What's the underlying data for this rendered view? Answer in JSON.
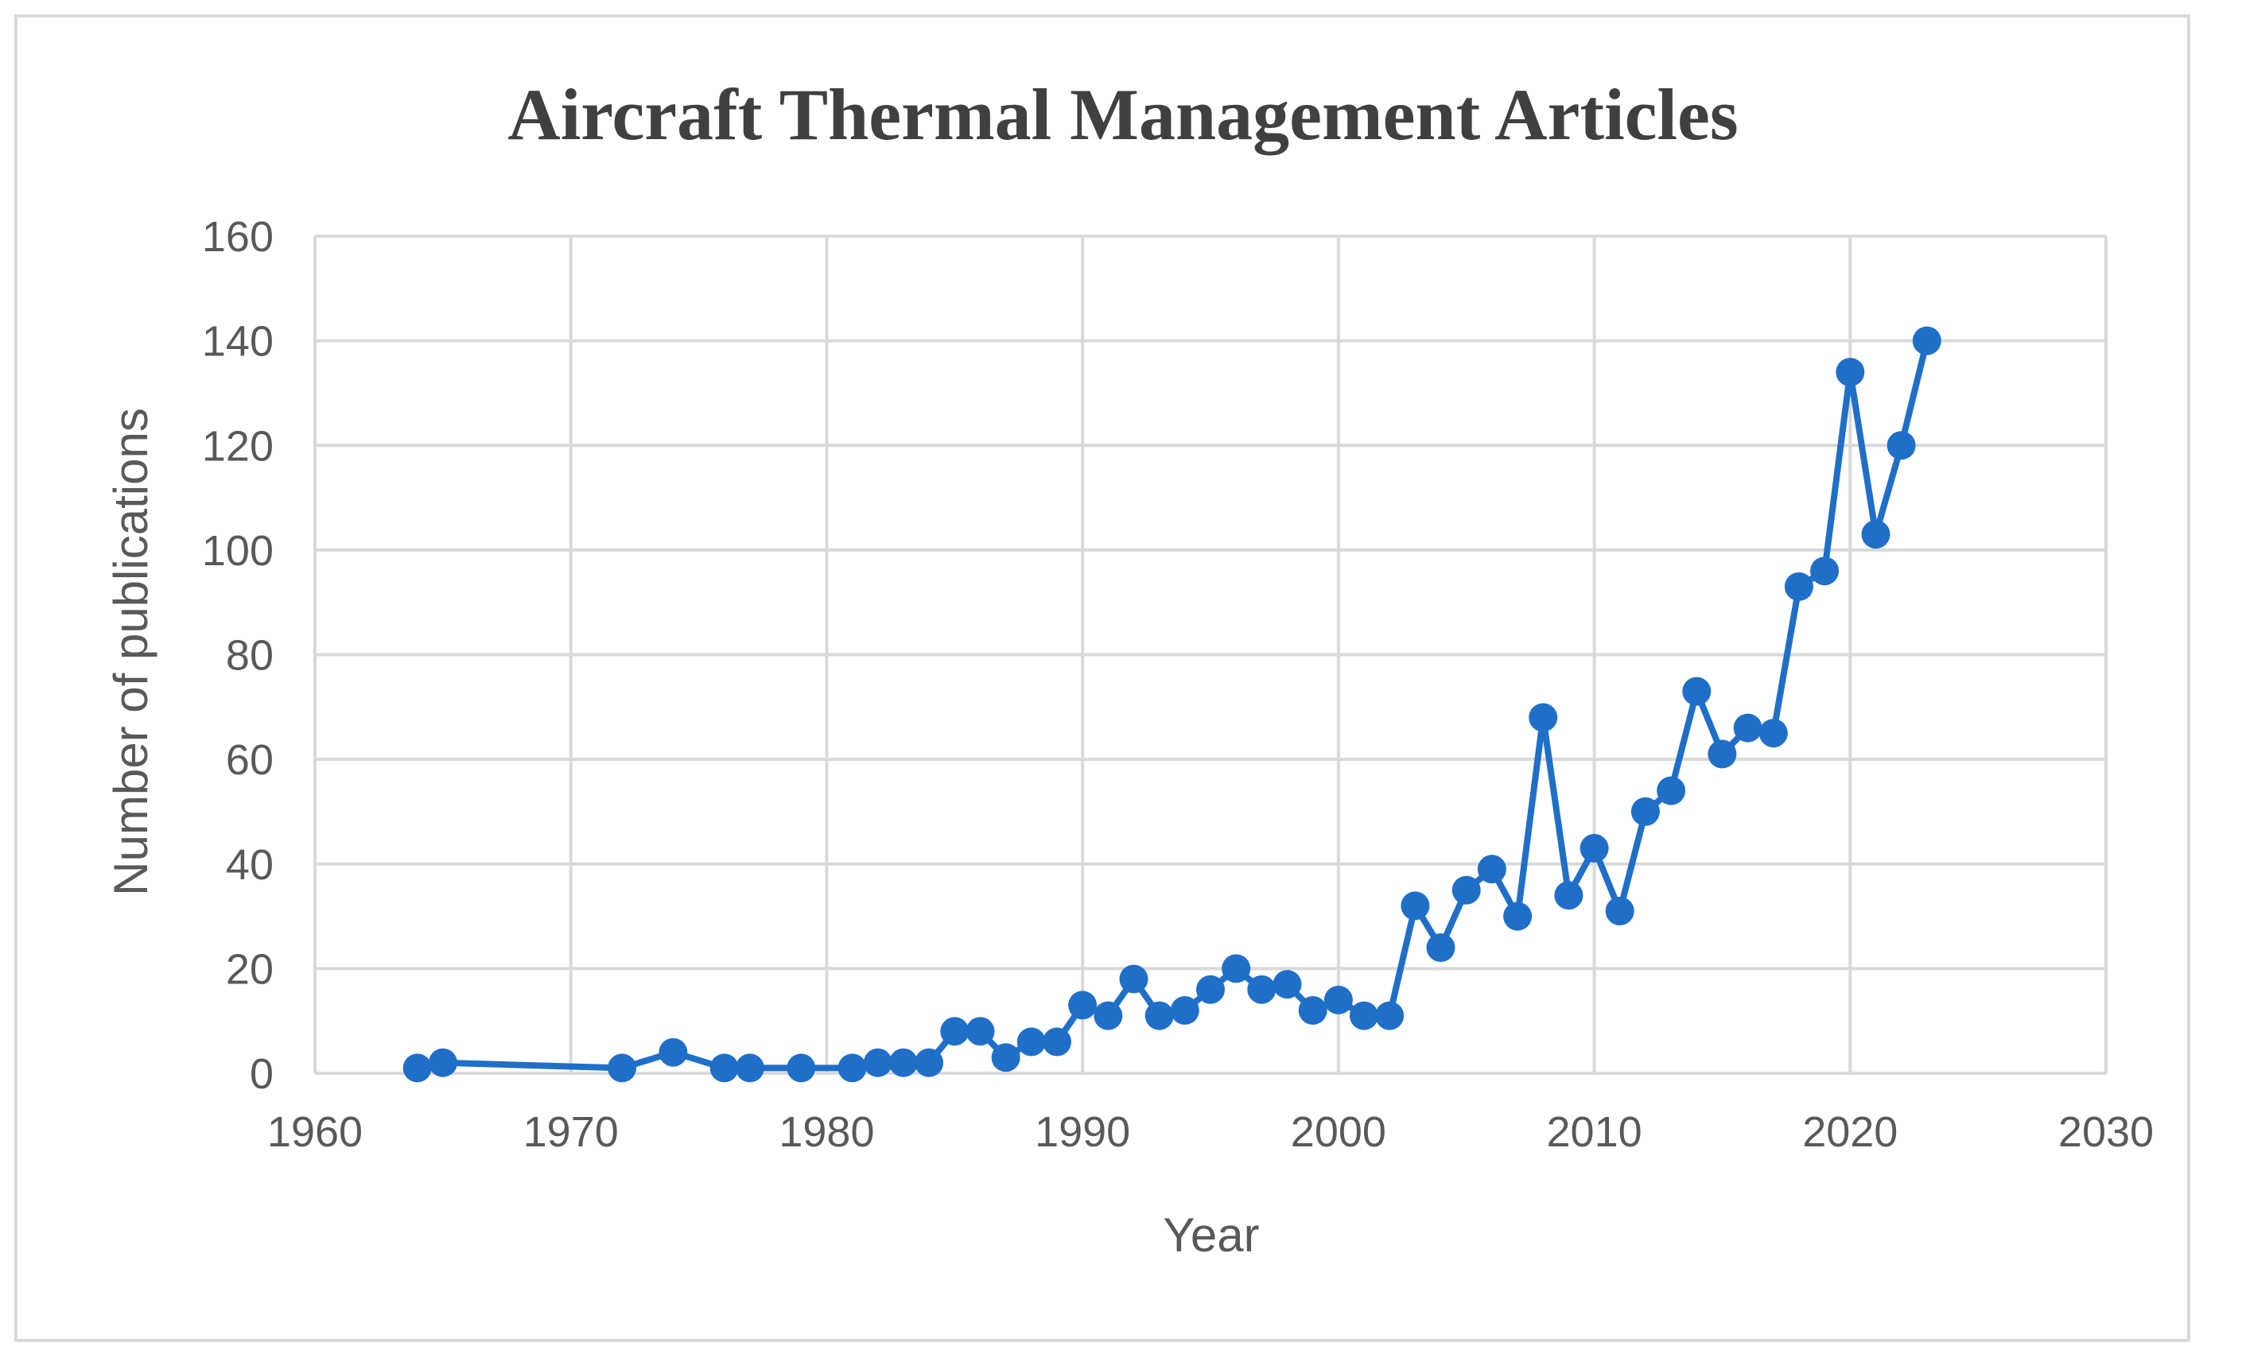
{
  "chart_data": {
    "type": "scatter",
    "title": "Aircraft Thermal Management Articles",
    "xlabel": "Year",
    "ylabel": "Number of publications",
    "xlim": [
      1960,
      2030
    ],
    "ylim": [
      0,
      160
    ],
    "x_ticks": [
      "1960",
      "1970",
      "1980",
      "1990",
      "2000",
      "2010",
      "2020",
      "2030"
    ],
    "y_ticks": [
      "0",
      "20",
      "40",
      "60",
      "80",
      "100",
      "120",
      "140",
      "160"
    ],
    "grid": true,
    "legend": "none",
    "color": "#1f6fc9",
    "series": [
      {
        "x": [
          1964,
          1965,
          1972,
          1974,
          1976,
          1977,
          1979,
          1981,
          1982,
          1983,
          1984,
          1985,
          1986,
          1987,
          1988,
          1989,
          1990,
          1991,
          1992,
          1993,
          1994,
          1995,
          1996,
          1997,
          1998,
          1999,
          2000,
          2001,
          2002,
          2003,
          2004,
          2005,
          2006,
          2007,
          2008,
          2009,
          2010,
          2011,
          2012,
          2013,
          2014,
          2015,
          2016,
          2017,
          2018,
          2019,
          2020,
          2021,
          2022,
          2023
        ],
        "y": [
          1,
          2,
          1,
          4,
          1,
          1,
          1,
          1,
          2,
          2,
          2,
          8,
          8,
          3,
          6,
          6,
          13,
          11,
          18,
          11,
          12,
          16,
          20,
          16,
          17,
          12,
          14,
          11,
          11,
          32,
          24,
          35,
          39,
          30,
          68,
          34,
          43,
          31,
          50,
          54,
          73,
          61,
          66,
          65,
          93,
          96,
          134,
          103,
          120,
          140
        ]
      }
    ]
  }
}
